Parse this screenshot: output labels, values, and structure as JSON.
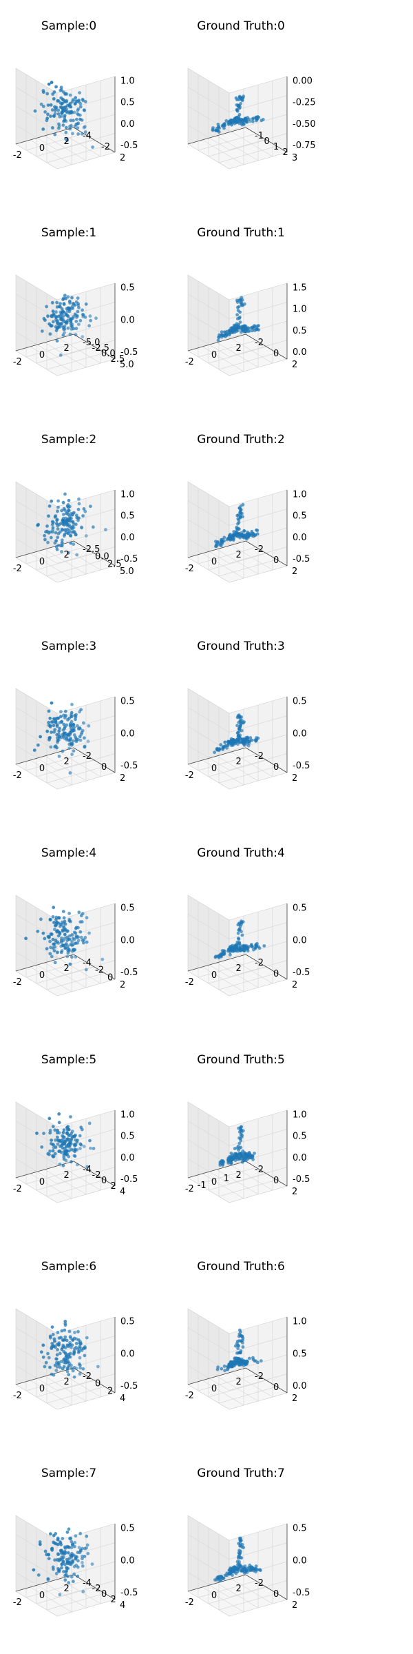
{
  "figure": {
    "point_color": "#1f77b4",
    "pane_colors": {
      "back": "#f2f2f2",
      "side": "#e9e9e9",
      "floor": "#f6f6f6"
    },
    "layout": "8 rows x 2 columns of 3D scatter plots"
  },
  "chart_data": [
    {
      "type": "scatter",
      "projection": "3d",
      "title": "Sample:0",
      "x_ticks": [
        "-2",
        "0",
        "2"
      ],
      "y_ticks": [
        "2",
        "-2",
        "-4"
      ],
      "z_ticks": [
        "1.0",
        "0.5",
        "0.0",
        "-0.5"
      ],
      "shape": "blob",
      "points": 140,
      "spread": [
        0.85,
        0.75,
        0.8
      ]
    },
    {
      "type": "scatter",
      "projection": "3d",
      "title": "Ground Truth:0",
      "x_ticks": [],
      "y_ticks": [
        "3",
        "2",
        "1",
        "0",
        "-1"
      ],
      "z_ticks": [
        "0.00",
        "-0.25",
        "-0.50",
        "-0.75"
      ],
      "shape": "arms",
      "points": 140,
      "spread": [
        0.9,
        0.55,
        0.7
      ]
    },
    {
      "type": "scatter",
      "projection": "3d",
      "title": "Sample:1",
      "x_ticks": [
        "-2",
        "0",
        "2"
      ],
      "y_ticks": [
        "5.0",
        "2.5",
        "0.0",
        "-2.5",
        "-5.0"
      ],
      "z_ticks": [
        "0.5",
        "0.0",
        "-0.5"
      ],
      "shape": "blob",
      "points": 140,
      "spread": [
        0.75,
        0.7,
        0.75
      ]
    },
    {
      "type": "scatter",
      "projection": "3d",
      "title": "Ground Truth:1",
      "x_ticks": [
        "-2",
        "0",
        "2"
      ],
      "y_ticks": [
        "2",
        "0",
        "-2"
      ],
      "z_ticks": [
        "1.5",
        "1.0",
        "0.5",
        "0.0"
      ],
      "shape": "arms",
      "points": 140,
      "spread": [
        0.8,
        0.6,
        0.8
      ]
    },
    {
      "type": "scatter",
      "projection": "3d",
      "title": "Sample:2",
      "x_ticks": [
        "-2",
        "0",
        "2"
      ],
      "y_ticks": [
        "5.0",
        "2.5",
        "0.0",
        "-2.5"
      ],
      "z_ticks": [
        "1.0",
        "0.5",
        "0.0",
        "-0.5"
      ],
      "shape": "blob",
      "points": 140,
      "spread": [
        0.85,
        0.75,
        0.85
      ]
    },
    {
      "type": "scatter",
      "projection": "3d",
      "title": "Ground Truth:2",
      "x_ticks": [
        "-2",
        "0",
        "2"
      ],
      "y_ticks": [
        "2",
        "0",
        "-2"
      ],
      "z_ticks": [
        "1.0",
        "0.5",
        "0.0",
        "-0.5"
      ],
      "shape": "arms",
      "points": 140,
      "spread": [
        0.8,
        0.6,
        0.8
      ]
    },
    {
      "type": "scatter",
      "projection": "3d",
      "title": "Sample:3",
      "x_ticks": [
        "-2",
        "0",
        "2"
      ],
      "y_ticks": [
        "2",
        "0",
        "-2"
      ],
      "z_ticks": [
        "0.5",
        "0.0",
        "-0.5"
      ],
      "shape": "blob",
      "points": 140,
      "spread": [
        0.8,
        0.75,
        0.8
      ]
    },
    {
      "type": "scatter",
      "projection": "3d",
      "title": "Ground Truth:3",
      "x_ticks": [
        "-2",
        "0",
        "2"
      ],
      "y_ticks": [
        "2",
        "0",
        "-2"
      ],
      "z_ticks": [
        "0.5",
        "0.0",
        "-0.5"
      ],
      "shape": "arms",
      "points": 140,
      "spread": [
        0.85,
        0.6,
        0.75
      ]
    },
    {
      "type": "scatter",
      "projection": "3d",
      "title": "Sample:4",
      "x_ticks": [
        "-2",
        "0",
        "2"
      ],
      "y_ticks": [
        "2",
        "0",
        "-2",
        "-4"
      ],
      "z_ticks": [
        "0.5",
        "0.0",
        "-0.5"
      ],
      "shape": "blob",
      "points": 140,
      "spread": [
        0.8,
        0.75,
        0.85
      ]
    },
    {
      "type": "scatter",
      "projection": "3d",
      "title": "Ground Truth:4",
      "x_ticks": [
        "-2",
        "0",
        "2"
      ],
      "y_ticks": [
        "2",
        "0",
        "-2"
      ],
      "z_ticks": [
        "0.5",
        "0.0",
        "-0.5"
      ],
      "shape": "arms",
      "points": 140,
      "spread": [
        0.85,
        0.55,
        0.75
      ]
    },
    {
      "type": "scatter",
      "projection": "3d",
      "title": "Sample:5",
      "x_ticks": [
        "-2",
        "0",
        "2"
      ],
      "y_ticks": [
        "4",
        "2",
        "0",
        "-2",
        "-4"
      ],
      "z_ticks": [
        "1.0",
        "0.5",
        "0.0",
        "-0.5"
      ],
      "shape": "blob",
      "points": 140,
      "spread": [
        0.8,
        0.75,
        0.75
      ]
    },
    {
      "type": "scatter",
      "projection": "3d",
      "title": "Ground Truth:5",
      "x_ticks": [
        "-2",
        "-1",
        "0",
        "1",
        "2"
      ],
      "y_ticks": [
        "2",
        "0",
        "-2"
      ],
      "z_ticks": [
        "1.0",
        "0.5",
        "0.0",
        "-0.5"
      ],
      "shape": "arms",
      "points": 140,
      "spread": [
        0.7,
        0.6,
        0.85
      ]
    },
    {
      "type": "scatter",
      "projection": "3d",
      "title": "Sample:6",
      "x_ticks": [
        "-2",
        "0",
        "2"
      ],
      "y_ticks": [
        "4",
        "2",
        "0",
        "-2"
      ],
      "z_ticks": [
        "0.5",
        "0.0",
        "-0.5"
      ],
      "shape": "blob",
      "points": 140,
      "spread": [
        0.8,
        0.75,
        0.85
      ]
    },
    {
      "type": "scatter",
      "projection": "3d",
      "title": "Ground Truth:6",
      "x_ticks": [
        "-2",
        "0",
        "2"
      ],
      "y_ticks": [
        "2",
        "0",
        "-2"
      ],
      "z_ticks": [
        "1.0",
        "0.5",
        "0.0"
      ],
      "shape": "arms",
      "points": 140,
      "spread": [
        0.8,
        0.6,
        0.8
      ]
    },
    {
      "type": "scatter",
      "projection": "3d",
      "title": "Sample:7",
      "x_ticks": [
        "-2",
        "0",
        "2"
      ],
      "y_ticks": [
        "4",
        "2",
        "0",
        "-2",
        "-4"
      ],
      "z_ticks": [
        "0.5",
        "0.0",
        "-0.5"
      ],
      "shape": "blob",
      "points": 140,
      "spread": [
        0.75,
        0.8,
        0.85
      ]
    },
    {
      "type": "scatter",
      "projection": "3d",
      "title": "Ground Truth:7",
      "x_ticks": [
        "-2",
        "0",
        "2"
      ],
      "y_ticks": [
        "2",
        "0",
        "-2"
      ],
      "z_ticks": [
        "0.5",
        "0.0",
        "-0.5"
      ],
      "shape": "arms",
      "points": 140,
      "spread": [
        0.8,
        0.6,
        0.85
      ]
    }
  ]
}
